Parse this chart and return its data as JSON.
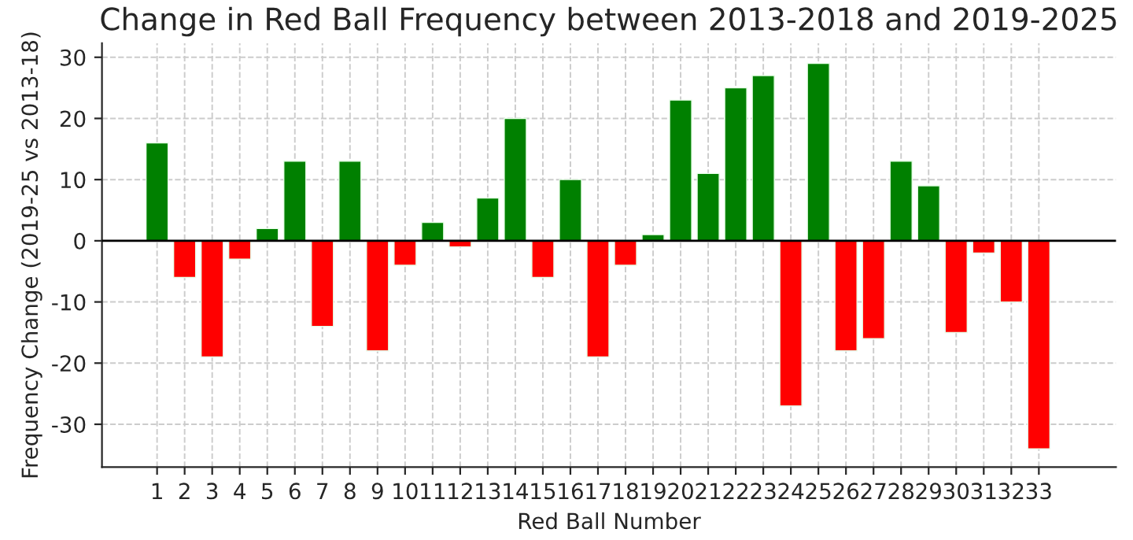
{
  "chart_data": {
    "type": "bar",
    "title": "Change in Red Ball Frequency between 2013-2018 and 2019-2025",
    "xlabel": "Red Ball Number",
    "ylabel": "Frequency Change (2019-25 vs 2013-18)",
    "x": [
      1,
      2,
      3,
      4,
      5,
      6,
      7,
      8,
      9,
      10,
      11,
      12,
      13,
      14,
      15,
      16,
      17,
      18,
      19,
      20,
      21,
      22,
      23,
      24,
      25,
      26,
      27,
      28,
      29,
      30,
      31,
      32,
      33
    ],
    "values": [
      16,
      -6,
      -19,
      -3,
      2,
      13,
      -14,
      13,
      -18,
      -4,
      3,
      -1,
      7,
      20,
      -6,
      10,
      -19,
      -4,
      1,
      23,
      11,
      25,
      27,
      -27,
      29,
      -18,
      -16,
      13,
      9,
      -15,
      -2,
      -10,
      -34
    ],
    "colors": [
      "#008000",
      "#ff0000",
      "#ff0000",
      "#ff0000",
      "#008000",
      "#008000",
      "#ff0000",
      "#008000",
      "#ff0000",
      "#ff0000",
      "#008000",
      "#ff0000",
      "#008000",
      "#008000",
      "#ff0000",
      "#008000",
      "#ff0000",
      "#ff0000",
      "#008000",
      "#008000",
      "#008000",
      "#008000",
      "#008000",
      "#ff0000",
      "#008000",
      "#ff0000",
      "#ff0000",
      "#008000",
      "#008000",
      "#ff0000",
      "#ff0000",
      "#ff0000",
      "#ff0000"
    ],
    "xlim": [
      -1,
      35.8
    ],
    "xticks": [
      1,
      2,
      3,
      4,
      5,
      6,
      7,
      8,
      9,
      10,
      11,
      12,
      13,
      14,
      15,
      16,
      17,
      18,
      19,
      20,
      21,
      22,
      23,
      24,
      25,
      26,
      27,
      28,
      29,
      30,
      31,
      32,
      33
    ],
    "ylim": [
      -37,
      32.3
    ],
    "yticks": [
      -30,
      -20,
      -10,
      0,
      10,
      20,
      30
    ],
    "ref_lines": [
      {
        "axis": "y",
        "value": 0,
        "color": "#000000"
      }
    ],
    "grid": true
  }
}
